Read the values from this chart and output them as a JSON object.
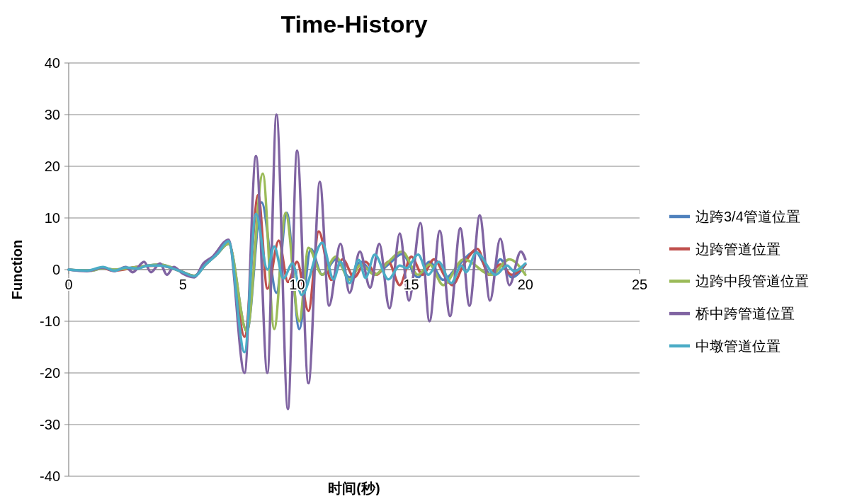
{
  "chart_data": {
    "type": "line",
    "title": "Time-History",
    "xlabel": "时间(秒)",
    "ylabel": "Function",
    "xlim": [
      0,
      25
    ],
    "xticks": [
      0,
      5,
      10,
      15,
      20,
      25
    ],
    "ylim": [
      -40,
      40
    ],
    "yticks": [
      -40,
      -30,
      -20,
      -10,
      0,
      10,
      20,
      30,
      40
    ],
    "grid": "y",
    "legend": "right",
    "marker": "none",
    "line_style": "solid",
    "series": [
      {
        "name": "边跨3/4管道位置",
        "color": "#4f81bd",
        "x": [
          0,
          1,
          1.5,
          2,
          3,
          4,
          5,
          5.5,
          6,
          6.5,
          7,
          7.8,
          8.45,
          9.1,
          9.55,
          10.1,
          10.6,
          11.1,
          11.7,
          12.3,
          12.8,
          13.4,
          14,
          14.6,
          15.3,
          15.8,
          16.4,
          17.1,
          17.8,
          18.5,
          18.9,
          19.4,
          20
        ],
        "values": [
          0,
          -0.2,
          0.3,
          0,
          0.5,
          1,
          -0.5,
          -1.2,
          1,
          3,
          5,
          -12,
          13,
          -4.5,
          11,
          -11.5,
          4,
          -1,
          2,
          -1.5,
          1.5,
          -1,
          1,
          3,
          -1.5,
          1.5,
          -2,
          1,
          3.5,
          -1,
          2,
          -1.5,
          1
        ]
      },
      {
        "name": "边跨管道位置",
        "color": "#c0504d",
        "x": [
          1.5,
          2,
          3,
          4,
          5,
          5.5,
          6,
          6.5,
          7,
          7.7,
          8.3,
          8.7,
          9.2,
          9.6,
          10,
          10.5,
          10.95,
          11.5,
          12,
          12.5,
          13,
          13.5,
          14,
          14.5,
          15,
          15.5,
          16,
          16.5,
          16.8,
          17.3,
          17.9,
          18.4,
          18.9,
          19.4,
          20
        ],
        "values": [
          0.4,
          -0.2,
          0.5,
          0.8,
          -0.5,
          -1.2,
          1,
          3,
          5.5,
          -13,
          14.5,
          -3.7,
          5.6,
          -2.4,
          1.5,
          -8,
          7.4,
          -2,
          2,
          -1.5,
          1.5,
          -1,
          1.5,
          -3,
          2.5,
          -1,
          2,
          -1.5,
          -3,
          1,
          4,
          -1,
          1,
          -1,
          1
        ]
      },
      {
        "name": "边跨中段管道位置",
        "color": "#9bbb59",
        "x": [
          0,
          1,
          1.5,
          2,
          3,
          4,
          5,
          5.5,
          6,
          6.5,
          7,
          7.8,
          8.5,
          9,
          9.5,
          10.1,
          10.5,
          11.1,
          11.7,
          12.3,
          12.8,
          13.4,
          14,
          14.6,
          15.3,
          15.8,
          16.4,
          17.3,
          18.5,
          19.3,
          20
        ],
        "values": [
          0,
          -0.2,
          0.3,
          0,
          0.5,
          1,
          -0.5,
          -1.2,
          1,
          3,
          5,
          -12,
          18.6,
          -11.5,
          11,
          -10,
          4.2,
          -1,
          2.5,
          -2,
          1,
          -1,
          1.5,
          3.5,
          -1,
          1,
          -3,
          2,
          -1,
          2,
          -1
        ]
      },
      {
        "name": "桥中跨管道位置",
        "color": "#8064a2",
        "x": [
          0,
          0.8,
          1.5,
          2,
          2.5,
          2.8,
          3.3,
          3.6,
          4,
          4.3,
          4.6,
          5,
          5.5,
          5.9,
          6.3,
          7,
          7.7,
          8.2,
          8.7,
          9.1,
          9.6,
          10,
          10.5,
          11,
          11.4,
          11.9,
          12.3,
          12.75,
          13.2,
          13.6,
          14.05,
          14.5,
          14.9,
          15.4,
          15.8,
          16.25,
          16.7,
          17.15,
          17.55,
          18,
          18.45,
          18.9,
          19.3,
          19.8,
          20
        ],
        "values": [
          0,
          -0.3,
          0.4,
          -0.3,
          0.5,
          -0.5,
          1.5,
          -0.5,
          1.2,
          -1,
          0.5,
          -0.8,
          -1.5,
          1.2,
          2.5,
          5.8,
          -20,
          22,
          -20,
          30,
          -27,
          23,
          -22,
          17,
          -7,
          5,
          -4.5,
          3.5,
          -3.5,
          5,
          -7.5,
          7,
          -6,
          9,
          -10,
          7.5,
          -9,
          8,
          -7,
          10.5,
          -6,
          6,
          -3,
          3.5,
          2
        ]
      },
      {
        "name": "中墩管道位置",
        "color": "#4bacc6",
        "x": [
          0,
          0.8,
          1.5,
          2,
          2.5,
          3,
          3.5,
          4,
          4.5,
          5,
          5.5,
          6,
          6.5,
          7,
          7.7,
          8.2,
          8.7,
          9,
          9.4,
          9.8,
          10.2,
          11.1,
          11.6,
          11.9,
          12.3,
          12.7,
          13,
          13.4,
          14,
          14.5,
          14.8,
          15.3,
          15.75,
          16.2,
          16.75,
          17.2,
          17.4,
          17.85,
          18.7,
          19.2,
          19.5,
          20
        ],
        "values": [
          0,
          -0.2,
          0.5,
          -0.2,
          0.4,
          0.2,
          0.8,
          0.8,
          0.3,
          -0.5,
          -1.3,
          1,
          3,
          5.5,
          -16,
          10.8,
          0,
          4.5,
          -1.7,
          1.2,
          -4.9,
          5.2,
          -1.9,
          1.5,
          -2.6,
          1.9,
          -1.6,
          2.9,
          -1.9,
          0.8,
          0.3,
          2.9,
          -1,
          1.5,
          -2.6,
          0.8,
          -0.5,
          3.3,
          -1,
          0.8,
          -0.3,
          1.2
        ]
      }
    ]
  }
}
